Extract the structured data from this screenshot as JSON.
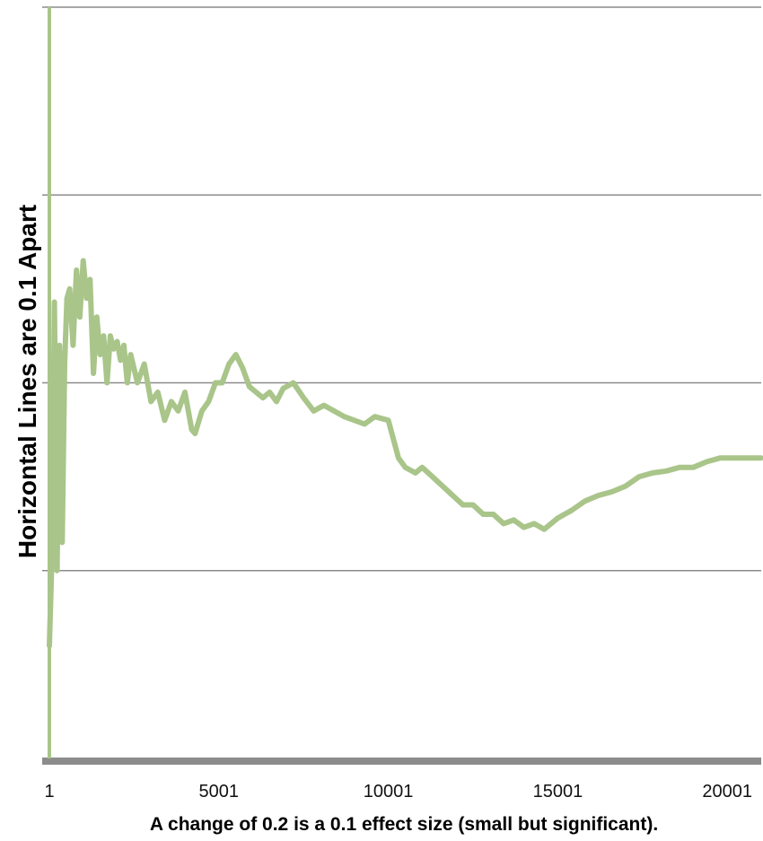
{
  "chart_data": {
    "type": "line",
    "title": "",
    "xlabel": "A change of 0.2 is a 0.1 effect size (small but significant).",
    "ylabel": "Horizontal Lines are 0.1 Apart",
    "xlim": [
      1,
      21001
    ],
    "ylim": [
      -0.2,
      0.2
    ],
    "x_ticks": [
      1,
      5001,
      10001,
      15001,
      20001
    ],
    "x_tick_labels": [
      "1",
      "5001",
      "10001",
      "15001",
      "20001"
    ],
    "y_gridlines": [
      0.2,
      0.1,
      0.0,
      -0.1
    ],
    "grid": true,
    "legend": "none",
    "colors": {
      "line": "#a9c58a",
      "axis_y": "#a9c58a",
      "axis_x": "#8c8c8c",
      "grid": "#8c8c8c"
    },
    "series": [
      {
        "x": [
          1,
          80,
          150,
          230,
          300,
          380,
          450,
          520,
          600,
          700,
          800,
          900,
          1000,
          1100,
          1200,
          1300,
          1400,
          1500,
          1600,
          1700,
          1800,
          1900,
          2000,
          2100,
          2200,
          2300,
          2400,
          2600,
          2800,
          3000,
          3200,
          3400,
          3600,
          3800,
          4000,
          4200,
          4300,
          4500,
          4700,
          4900,
          5100,
          5300,
          5500,
          5700,
          5900,
          6100,
          6300,
          6500,
          6700,
          6900,
          7200,
          7500,
          7800,
          8100,
          8400,
          8700,
          9000,
          9300,
          9600,
          10000,
          10300,
          10500,
          10800,
          11000,
          11300,
          11600,
          11900,
          12200,
          12500,
          12800,
          13100,
          13400,
          13700,
          14000,
          14300,
          14600,
          15000,
          15400,
          15800,
          16200,
          16600,
          17000,
          17400,
          17800,
          18200,
          18600,
          19000,
          19400,
          19800,
          20200,
          20600,
          21001
        ],
        "y": [
          -0.14,
          -0.09,
          0.043,
          -0.1,
          0.02,
          -0.085,
          0.01,
          0.045,
          0.05,
          0.02,
          0.06,
          0.035,
          0.065,
          0.045,
          0.055,
          0.005,
          0.035,
          0.015,
          0.025,
          0.0,
          0.025,
          0.018,
          0.022,
          0.012,
          0.02,
          0.0,
          0.015,
          0.0,
          0.01,
          -0.01,
          -0.005,
          -0.02,
          -0.01,
          -0.015,
          -0.005,
          -0.025,
          -0.027,
          -0.015,
          -0.01,
          0.0,
          0.0,
          0.01,
          0.015,
          0.008,
          -0.002,
          -0.005,
          -0.008,
          -0.005,
          -0.01,
          -0.003,
          0.0,
          -0.008,
          -0.015,
          -0.012,
          -0.015,
          -0.018,
          -0.02,
          -0.022,
          -0.018,
          -0.02,
          -0.04,
          -0.045,
          -0.048,
          -0.045,
          -0.05,
          -0.055,
          -0.06,
          -0.065,
          -0.065,
          -0.07,
          -0.07,
          -0.075,
          -0.073,
          -0.077,
          -0.075,
          -0.078,
          -0.072,
          -0.068,
          -0.063,
          -0.06,
          -0.058,
          -0.055,
          -0.05,
          -0.048,
          -0.047,
          -0.045,
          -0.045,
          -0.042,
          -0.04,
          -0.04,
          -0.04,
          -0.04
        ]
      }
    ]
  }
}
